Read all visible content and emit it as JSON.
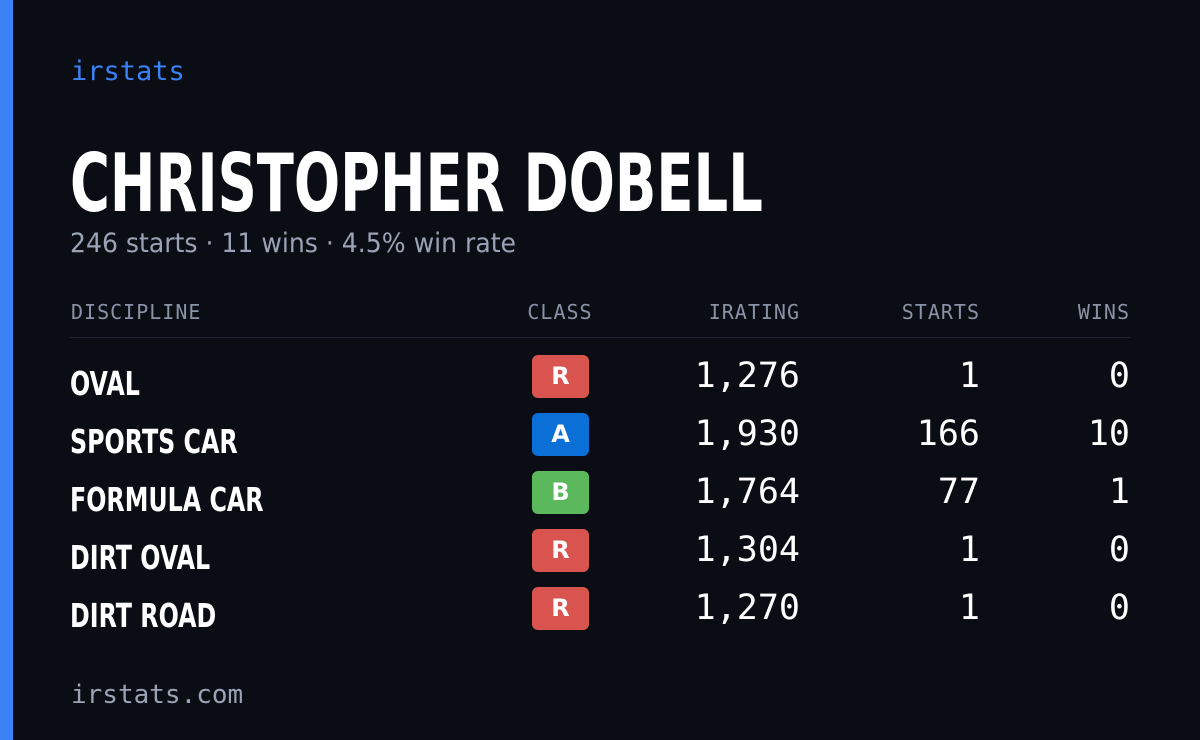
{
  "brand": "irstats",
  "driver": {
    "name": "CHRISTOPHER DOBELL",
    "summary": "246 starts · 11 wins · 4.5% win rate"
  },
  "table": {
    "headers": {
      "discipline": "DISCIPLINE",
      "class": "CLASS",
      "irating": "IRATING",
      "starts": "STARTS",
      "wins": "WINS"
    },
    "rows": [
      {
        "discipline": "OVAL",
        "class": "R",
        "class_color": "#d9534f",
        "irating": "1,276",
        "starts": "1",
        "wins": "0"
      },
      {
        "discipline": "SPORTS CAR",
        "class": "A",
        "class_color": "#0a6fd6",
        "irating": "1,930",
        "starts": "166",
        "wins": "10"
      },
      {
        "discipline": "FORMULA CAR",
        "class": "B",
        "class_color": "#5cb85c",
        "irating": "1,764",
        "starts": "77",
        "wins": "1"
      },
      {
        "discipline": "DIRT OVAL",
        "class": "R",
        "class_color": "#d9534f",
        "irating": "1,304",
        "starts": "1",
        "wins": "0"
      },
      {
        "discipline": "DIRT ROAD",
        "class": "R",
        "class_color": "#d9534f",
        "irating": "1,270",
        "starts": "1",
        "wins": "0"
      }
    ]
  },
  "footer": "irstats.com",
  "colors": {
    "accent": "#3b82f6",
    "background": "#0a0d14"
  }
}
